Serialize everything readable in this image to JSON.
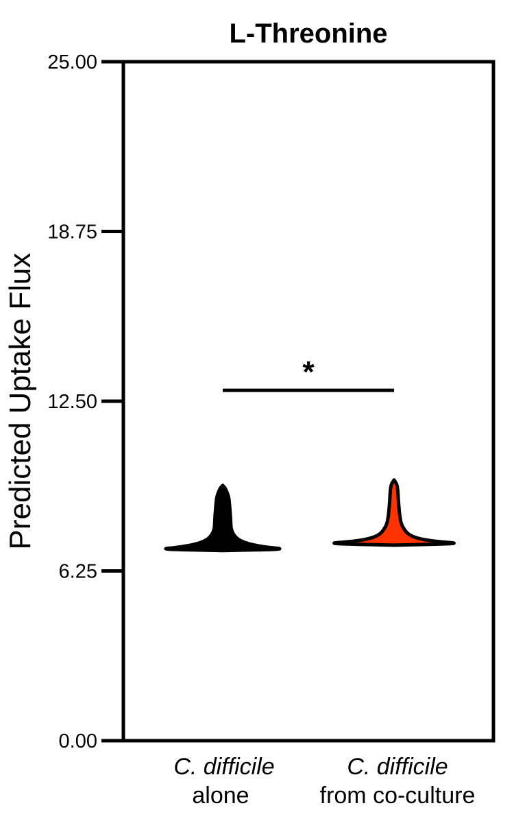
{
  "chart_data": {
    "type": "violin",
    "title": "L-Threonine",
    "ylabel": "Predicted Uptake Flux",
    "xlabel": "",
    "ylim": [
      0,
      25
    ],
    "yticks": [
      0,
      6.25,
      12.5,
      18.75,
      25
    ],
    "ytick_labels": [
      "0.00",
      "6.25",
      "12.50",
      "18.75",
      "25.00"
    ],
    "grid": false,
    "legend": "none",
    "categories": [
      {
        "line1": "C. difficile",
        "line2": "alone"
      },
      {
        "line1": "C. difficile",
        "line2": "from co-culture"
      }
    ],
    "series": [
      {
        "min": 7.0,
        "max": 9.4,
        "fill": "#000000",
        "stroke": "#000000",
        "profile": [
          [
            7.0,
            0.0
          ],
          [
            7.05,
            0.93
          ],
          [
            7.12,
            0.62
          ],
          [
            7.25,
            0.36
          ],
          [
            7.4,
            0.22
          ],
          [
            7.6,
            0.15
          ],
          [
            7.8,
            0.12
          ],
          [
            8.0,
            0.115
          ],
          [
            8.3,
            0.11
          ],
          [
            8.6,
            0.1
          ],
          [
            8.9,
            0.09
          ],
          [
            9.1,
            0.07
          ],
          [
            9.3,
            0.035
          ],
          [
            9.4,
            0.0
          ]
        ]
      },
      {
        "min": 7.2,
        "max": 9.6,
        "fill": "#ff3300",
        "stroke": "#000000",
        "profile": [
          [
            7.2,
            0.0
          ],
          [
            7.26,
            1.0
          ],
          [
            7.33,
            0.6
          ],
          [
            7.45,
            0.33
          ],
          [
            7.6,
            0.2
          ],
          [
            7.8,
            0.14
          ],
          [
            8.0,
            0.1
          ],
          [
            8.3,
            0.08
          ],
          [
            8.6,
            0.07
          ],
          [
            8.9,
            0.06
          ],
          [
            9.2,
            0.055
          ],
          [
            9.45,
            0.04
          ],
          [
            9.6,
            0.0
          ]
        ]
      }
    ],
    "significance": {
      "label": "*",
      "from": 0,
      "to": 1,
      "y": 12.9
    }
  }
}
